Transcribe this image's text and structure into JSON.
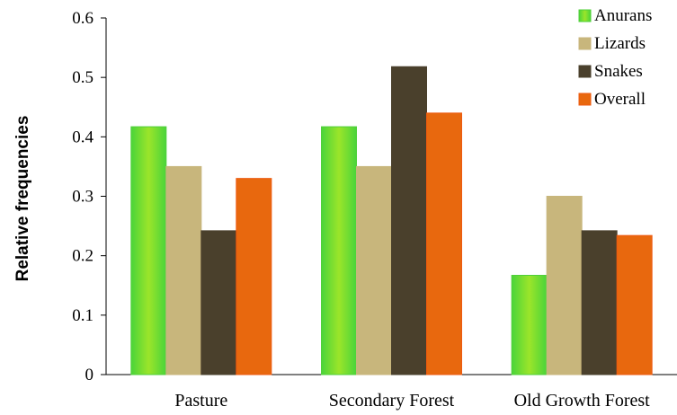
{
  "chart_data": {
    "type": "bar",
    "title": "",
    "xlabel": "",
    "ylabel": "Relative frequencies",
    "categories": [
      "Pasture",
      "Secondary Forest",
      "Old Growth Forest"
    ],
    "ylim": [
      0,
      0.6
    ],
    "yticks": [
      "0",
      "0.1",
      "0.2",
      "0.3",
      "0.4",
      "0.5",
      "0.6"
    ],
    "grid": false,
    "legend_position": "top-right",
    "series": [
      {
        "name": "Anurans",
        "values": [
          0.417,
          0.417,
          0.167
        ],
        "color": "#6ee13a"
      },
      {
        "name": "Lizards",
        "values": [
          0.35,
          0.35,
          0.3
        ],
        "color": "#c8b67c"
      },
      {
        "name": "Snakes",
        "values": [
          0.242,
          0.518,
          0.242
        ],
        "color": "#4a402c"
      },
      {
        "name": "Overall",
        "values": [
          0.33,
          0.44,
          0.234
        ],
        "color": "#e8680e"
      }
    ]
  }
}
